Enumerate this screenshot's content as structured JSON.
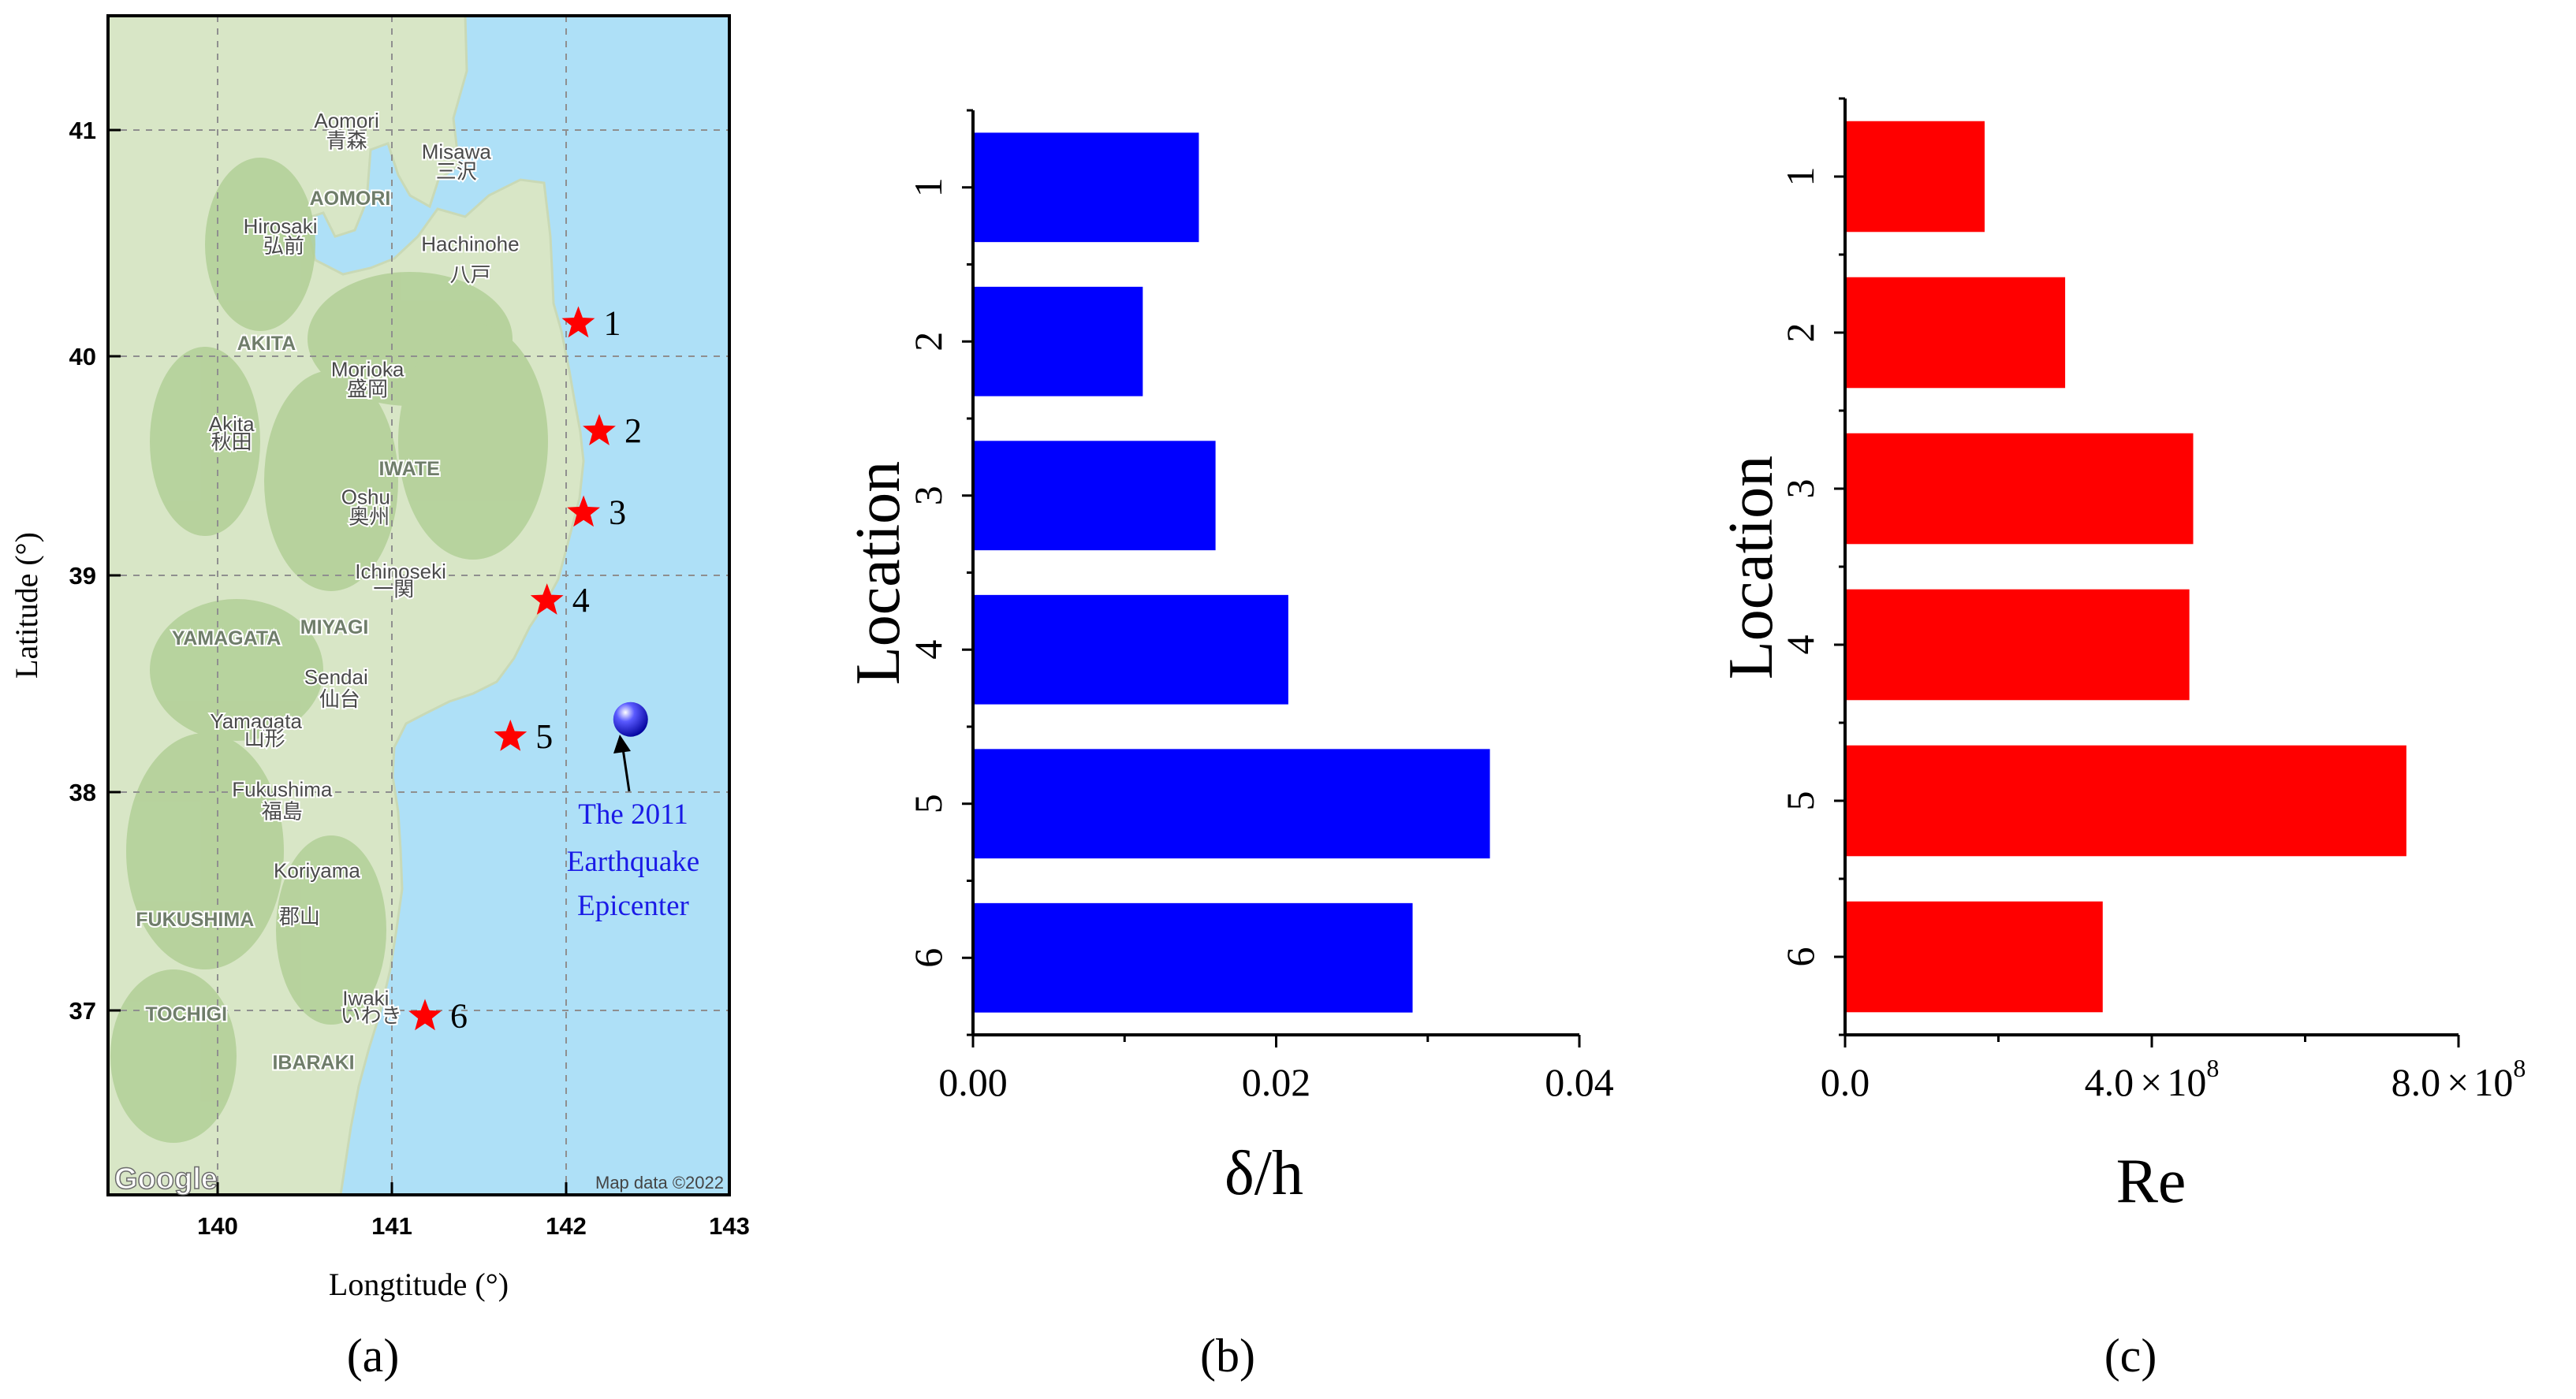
{
  "colors": {
    "sea": "#aee0f7",
    "land": "#d8e6c6",
    "forest": "#b2cf96",
    "star": "#ff0000",
    "epicenter": "#0000ff",
    "annotation_text": "#1a1ae6",
    "bar_b": "#0000ff",
    "bar_c": "#ff0000"
  },
  "chart_data": [
    {
      "panel": "a",
      "type": "scatter",
      "panel_label": "(a)",
      "xlabel": "Longtitude (°)",
      "ylabel": "Latitude (°)",
      "xlim": [
        139.4,
        142.95
      ],
      "ylim": [
        36.15,
        41.5
      ],
      "xticks": [
        140,
        141,
        142,
        143
      ],
      "yticks": [
        37,
        38,
        39,
        40,
        41
      ],
      "grid": true,
      "locations": [
        {
          "label": "1",
          "lon": 142.07,
          "lat": 40.12
        },
        {
          "label": "2",
          "lon": 142.19,
          "lat": 39.63
        },
        {
          "label": "3",
          "lon": 142.1,
          "lat": 39.26
        },
        {
          "label": "4",
          "lon": 141.89,
          "lat": 38.86
        },
        {
          "label": "5",
          "lon": 141.68,
          "lat": 38.24
        },
        {
          "label": "6",
          "lon": 141.19,
          "lat": 36.97
        }
      ],
      "epicenter": {
        "lon": 142.37,
        "lat": 38.32,
        "label_lines": [
          "The 2011",
          "Earthquake",
          "Epicenter"
        ]
      },
      "map_labels": [
        {
          "text": "Aomori",
          "lon": 140.74,
          "lat": 41.01
        },
        {
          "text": "青森",
          "lon": 140.74,
          "lat": 40.92
        },
        {
          "text": "Misawa",
          "lon": 141.37,
          "lat": 40.87
        },
        {
          "text": "三沢",
          "lon": 141.37,
          "lat": 40.78
        },
        {
          "text": "AOMORI",
          "lon": 140.76,
          "lat": 40.66
        },
        {
          "text": "Hirosaki",
          "lon": 140.36,
          "lat": 40.53
        },
        {
          "text": "弘前",
          "lon": 140.38,
          "lat": 40.44
        },
        {
          "text": "Hachinohe",
          "lon": 141.45,
          "lat": 40.45
        },
        {
          "text": "八戸",
          "lon": 141.45,
          "lat": 40.31
        },
        {
          "text": "AKITA",
          "lon": 140.28,
          "lat": 40.0
        },
        {
          "text": "Morioka",
          "lon": 140.86,
          "lat": 39.88
        },
        {
          "text": "盛岡",
          "lon": 140.86,
          "lat": 39.79
        },
        {
          "text": "Akita",
          "lon": 140.08,
          "lat": 39.63
        },
        {
          "text": "秋田",
          "lon": 140.08,
          "lat": 39.55
        },
        {
          "text": "IWATE",
          "lon": 141.1,
          "lat": 39.43
        },
        {
          "text": "Oshu",
          "lon": 140.85,
          "lat": 39.3
        },
        {
          "text": "奥州",
          "lon": 140.87,
          "lat": 39.21
        },
        {
          "text": "Ichinoseki",
          "lon": 141.05,
          "lat": 38.96
        },
        {
          "text": "一関",
          "lon": 141.01,
          "lat": 38.88
        },
        {
          "text": "MIYAGI",
          "lon": 140.67,
          "lat": 38.71
        },
        {
          "text": "YAMAGATA",
          "lon": 140.05,
          "lat": 38.66
        },
        {
          "text": "Sendai",
          "lon": 140.68,
          "lat": 38.48
        },
        {
          "text": "仙台",
          "lon": 140.7,
          "lat": 38.38
        },
        {
          "text": "Yamagata",
          "lon": 140.22,
          "lat": 38.28
        },
        {
          "text": "山形",
          "lon": 140.27,
          "lat": 38.2
        },
        {
          "text": "Fukushima",
          "lon": 140.37,
          "lat": 37.97
        },
        {
          "text": "福島",
          "lon": 140.37,
          "lat": 37.87
        },
        {
          "text": "Koriyama",
          "lon": 140.57,
          "lat": 37.6
        },
        {
          "text": "郡山",
          "lon": 140.47,
          "lat": 37.39
        },
        {
          "text": "FUKUSHIMA",
          "lon": 139.87,
          "lat": 37.38
        },
        {
          "text": "TOCHIGI",
          "lon": 139.82,
          "lat": 36.95
        },
        {
          "text": "Iwaki",
          "lon": 140.85,
          "lat": 37.02
        },
        {
          "text": "いわき",
          "lon": 140.88,
          "lat": 36.94
        },
        {
          "text": "IBARAKI",
          "lon": 140.55,
          "lat": 36.73
        }
      ],
      "attribution": {
        "logo": "Google",
        "text": "Map data ©2022"
      }
    },
    {
      "panel": "b",
      "type": "bar",
      "orientation": "horizontal",
      "panel_label": "(b)",
      "xlabel": "δ/h",
      "ylabel": "Location",
      "categories": [
        "1",
        "2",
        "3",
        "4",
        "5",
        "6"
      ],
      "values": [
        0.0149,
        0.0112,
        0.016,
        0.0208,
        0.0341,
        0.029
      ],
      "xlim": [
        0,
        0.04
      ],
      "xticks": [
        0,
        0.02,
        0.04
      ],
      "xtick_labels": [
        "0.00",
        "0.02",
        "0.04"
      ]
    },
    {
      "panel": "c",
      "type": "bar",
      "orientation": "horizontal",
      "panel_label": "(c)",
      "xlabel": "Re",
      "ylabel": "Location",
      "categories": [
        "1",
        "2",
        "3",
        "4",
        "5",
        "6"
      ],
      "values": [
        182000000.0,
        287000000.0,
        454000000.0,
        449000000.0,
        732000000.0,
        336000000.0
      ],
      "xlim": [
        0,
        800000000.0
      ],
      "xticks": [
        0,
        400000000.0,
        800000000.0
      ],
      "xtick_labels": [
        {
          "mantissa": "0.0"
        },
        {
          "mantissa": "4.0",
          "times": "×",
          "base": "10",
          "exp": "8"
        },
        {
          "mantissa": "8.0",
          "times": "×",
          "base": "10",
          "exp": "8"
        }
      ]
    }
  ]
}
